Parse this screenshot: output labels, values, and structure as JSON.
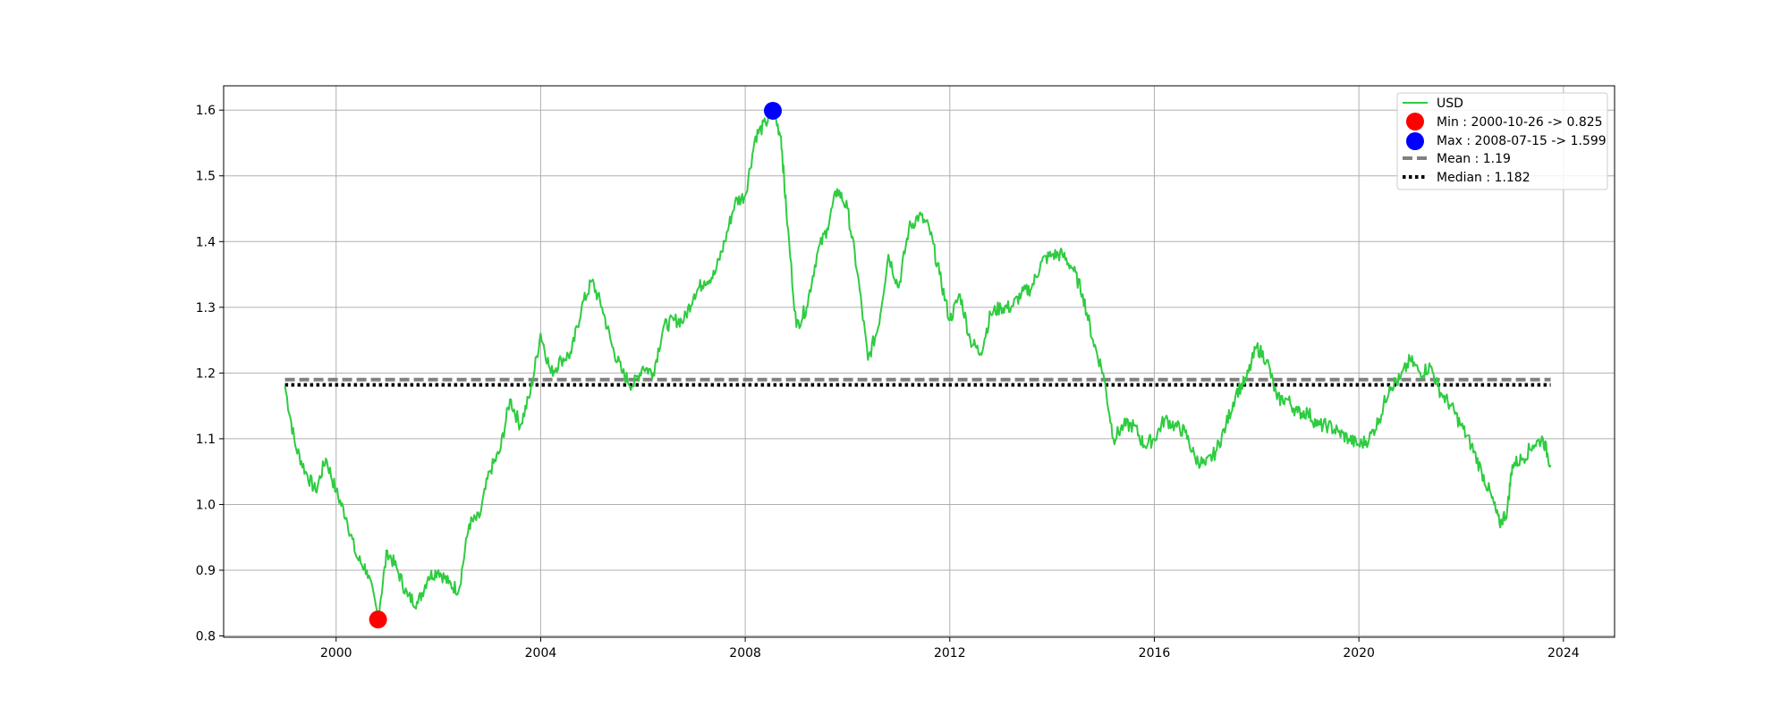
{
  "chart_data": {
    "type": "line",
    "title": "",
    "xlabel": "",
    "ylabel": "",
    "xlim": [
      1997.8,
      2025.0
    ],
    "ylim": [
      0.798,
      1.637
    ],
    "xticks": [
      2000,
      2004,
      2008,
      2012,
      2016,
      2020,
      2024
    ],
    "xtick_labels": [
      "2000",
      "2004",
      "2008",
      "2012",
      "2016",
      "2020",
      "2024"
    ],
    "yticks": [
      0.8,
      0.9,
      1.0,
      1.1,
      1.2,
      1.3,
      1.4,
      1.5,
      1.6
    ],
    "ytick_labels": [
      "0.8",
      "0.9",
      "1.0",
      "1.1",
      "1.2",
      "1.3",
      "1.4",
      "1.5",
      "1.6"
    ],
    "grid": true,
    "legend_position": "top-right",
    "series": [
      {
        "name": "USD",
        "color": "#2ecc40",
        "x": [
          1999.0,
          1999.2,
          1999.4,
          1999.6,
          1999.8,
          2000.0,
          2000.2,
          2000.4,
          2000.6,
          2000.82,
          2001.0,
          2001.2,
          2001.4,
          2001.6,
          2001.8,
          2002.0,
          2002.2,
          2002.4,
          2002.6,
          2002.8,
          2003.0,
          2003.2,
          2003.4,
          2003.6,
          2003.8,
          2004.0,
          2004.2,
          2004.4,
          2004.6,
          2004.8,
          2005.0,
          2005.2,
          2005.4,
          2005.6,
          2005.8,
          2006.0,
          2006.2,
          2006.4,
          2006.6,
          2006.8,
          2007.0,
          2007.2,
          2007.4,
          2007.6,
          2007.8,
          2008.0,
          2008.2,
          2008.4,
          2008.54,
          2008.7,
          2008.8,
          2009.0,
          2009.2,
          2009.4,
          2009.6,
          2009.8,
          2010.0,
          2010.2,
          2010.4,
          2010.6,
          2010.8,
          2011.0,
          2011.2,
          2011.4,
          2011.6,
          2011.8,
          2012.0,
          2012.2,
          2012.4,
          2012.6,
          2012.8,
          2013.0,
          2013.2,
          2013.4,
          2013.6,
          2013.8,
          2014.0,
          2014.2,
          2014.4,
          2014.6,
          2014.8,
          2015.0,
          2015.2,
          2015.4,
          2015.6,
          2015.8,
          2016.0,
          2016.2,
          2016.4,
          2016.6,
          2016.8,
          2017.0,
          2017.2,
          2017.4,
          2017.6,
          2017.8,
          2018.0,
          2018.2,
          2018.4,
          2018.6,
          2018.8,
          2019.0,
          2019.2,
          2019.4,
          2019.6,
          2019.8,
          2020.0,
          2020.2,
          2020.4,
          2020.6,
          2020.8,
          2021.0,
          2021.2,
          2021.4,
          2021.6,
          2021.8,
          2022.0,
          2022.2,
          2022.4,
          2022.6,
          2022.75,
          2022.9,
          2023.0,
          2023.2,
          2023.4,
          2023.6,
          2023.75
        ],
        "values": [
          1.18,
          1.09,
          1.05,
          1.02,
          1.07,
          1.02,
          0.98,
          0.92,
          0.9,
          0.83,
          0.93,
          0.9,
          0.86,
          0.85,
          0.89,
          0.9,
          0.88,
          0.87,
          0.97,
          0.98,
          1.05,
          1.08,
          1.16,
          1.12,
          1.17,
          1.26,
          1.2,
          1.22,
          1.23,
          1.3,
          1.34,
          1.3,
          1.24,
          1.2,
          1.18,
          1.21,
          1.2,
          1.27,
          1.28,
          1.28,
          1.32,
          1.34,
          1.35,
          1.4,
          1.46,
          1.47,
          1.56,
          1.58,
          1.599,
          1.56,
          1.45,
          1.27,
          1.3,
          1.38,
          1.42,
          1.48,
          1.45,
          1.35,
          1.22,
          1.27,
          1.38,
          1.33,
          1.42,
          1.44,
          1.42,
          1.35,
          1.28,
          1.32,
          1.25,
          1.23,
          1.29,
          1.3,
          1.3,
          1.32,
          1.33,
          1.37,
          1.38,
          1.38,
          1.36,
          1.32,
          1.25,
          1.2,
          1.1,
          1.12,
          1.12,
          1.09,
          1.1,
          1.13,
          1.12,
          1.11,
          1.07,
          1.06,
          1.08,
          1.12,
          1.17,
          1.19,
          1.24,
          1.22,
          1.16,
          1.16,
          1.14,
          1.14,
          1.12,
          1.12,
          1.11,
          1.1,
          1.09,
          1.1,
          1.13,
          1.18,
          1.19,
          1.22,
          1.2,
          1.21,
          1.17,
          1.15,
          1.12,
          1.09,
          1.05,
          1.01,
          0.97,
          0.99,
          1.06,
          1.07,
          1.09,
          1.1,
          1.06
        ]
      }
    ],
    "min_point": {
      "x": 2000.82,
      "y": 0.825,
      "color": "#ff0000",
      "label": "Min : 2000-10-26 -> 0.825"
    },
    "max_point": {
      "x": 2008.54,
      "y": 1.599,
      "color": "#0000ff",
      "label": "Max : 2008-07-15 -> 1.599"
    },
    "mean_line": {
      "y": 1.19,
      "color": "#808080",
      "style": "dashed",
      "label": "Mean : 1.19",
      "x_range": [
        1999.0,
        2023.75
      ]
    },
    "median_line": {
      "y": 1.182,
      "color": "#000000",
      "style": "dotted",
      "label": "Median : 1.182",
      "x_range": [
        1999.0,
        2023.75
      ]
    }
  }
}
